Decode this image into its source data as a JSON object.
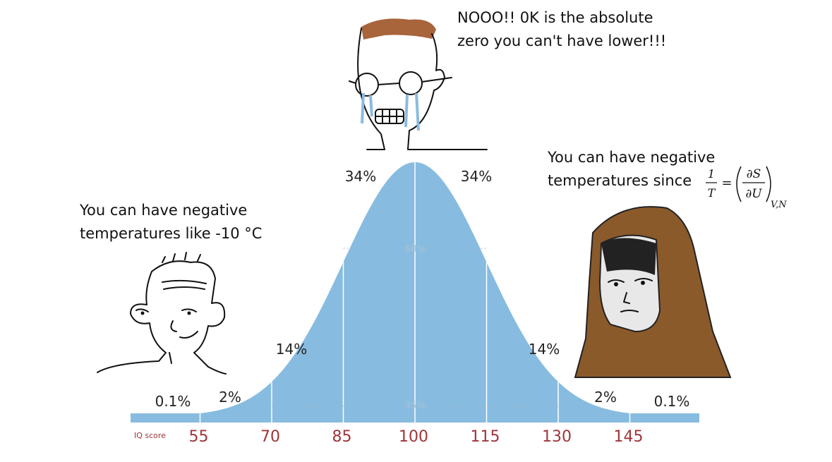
{
  "captions": {
    "left": [
      "You can have negative",
      "temperatures like -10 °C"
    ],
    "top": [
      "NOOO!! 0K is the absolute",
      "zero you can't have lower!!!"
    ],
    "right": [
      "You can have negative",
      "temperatures since"
    ]
  },
  "formula": {
    "numerator": "1",
    "denominator": "T",
    "equals": "=",
    "partial_top": "∂S",
    "partial_bottom": "∂U",
    "subscript": "V,N"
  },
  "curve": {
    "band_labels": [
      "0.1%",
      "2%",
      "14%",
      "34%",
      "34%",
      "14%",
      "2%",
      "0.1%"
    ],
    "inner_labels": [
      "68%",
      "95%"
    ],
    "axis_label": "IQ score",
    "ticks": [
      55,
      70,
      85,
      100,
      115,
      130,
      145
    ]
  }
}
